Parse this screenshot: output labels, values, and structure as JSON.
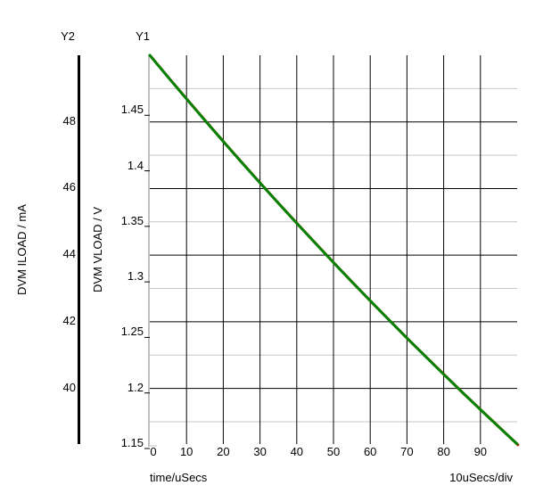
{
  "figure": {
    "y2_header": "Y2",
    "y1_header": "Y1",
    "y2_axis_title": "DVM ILOAD / mA",
    "y1_axis_title": "DVM VLOAD / V",
    "x_axis_title": "time/uSecs",
    "x_division_label": "10uSecs/div"
  },
  "colors": {
    "background": "#ffffff",
    "major_grid": "#000000",
    "minor_grid": "#c6c6c6",
    "y1_axis_line": "#c0c0c0",
    "y2_axis_bar": "#000000",
    "trace_vload": "#038203",
    "trace_iload": "#dd1400",
    "text": "#000000"
  },
  "chart_data": {
    "type": "line",
    "title": "",
    "xlabel": "time/uSecs",
    "x_division": "10uSecs/div",
    "x_range": [
      0,
      100
    ],
    "x_major_ticks": [
      0,
      10,
      20,
      30,
      40,
      50,
      60,
      70,
      80,
      90
    ],
    "y1_axis": {
      "label": "DVM VLOAD / V",
      "range": [
        1.15,
        1.5
      ],
      "tick_values": [
        1.45,
        1.4,
        1.35,
        1.3,
        1.25,
        1.2,
        1.15
      ],
      "tick_labels": [
        "1.45",
        "1.4",
        "1.35",
        "1.3",
        "1.25",
        "1.2",
        "1.15"
      ]
    },
    "y2_axis": {
      "label": "DVM ILOAD / mA",
      "range": [
        38.33,
        50
      ],
      "tick_values": [
        48,
        46,
        44,
        42,
        40
      ],
      "tick_labels": [
        "48",
        "46",
        "44",
        "42",
        "40"
      ],
      "minor_tick_values": [
        49,
        47,
        45,
        43,
        41,
        39
      ]
    },
    "grid": {
      "major_horizontal_source": "y2",
      "minor_horizontal_source": "y2",
      "vertical_every_usecs": 10
    },
    "x": [
      0,
      5,
      10,
      15,
      20,
      25,
      30,
      35,
      40,
      45,
      50,
      55,
      60,
      65,
      70,
      75,
      80,
      85,
      90,
      95,
      100
    ],
    "series": [
      {
        "name": "DVM VLOAD",
        "axis": "y1",
        "color_key": "trace_vload",
        "values": [
          1.5,
          1.4802,
          1.4607,
          1.4414,
          1.4224,
          1.4036,
          1.3851,
          1.3668,
          1.3488,
          1.331,
          1.3134,
          1.2961,
          1.279,
          1.2621,
          1.2454,
          1.229,
          1.2128,
          1.1968,
          1.181,
          1.1654,
          1.15
        ]
      },
      {
        "name": "DVM ILOAD",
        "axis": "y2",
        "color_key": "trace_iload",
        "values": [
          50.0,
          49.34,
          48.69,
          48.05,
          47.41,
          46.79,
          46.17,
          45.56,
          44.96,
          44.37,
          43.78,
          43.2,
          42.63,
          42.07,
          41.51,
          40.97,
          40.43,
          39.89,
          39.37,
          38.85,
          38.33
        ]
      }
    ],
    "legend": "none"
  }
}
